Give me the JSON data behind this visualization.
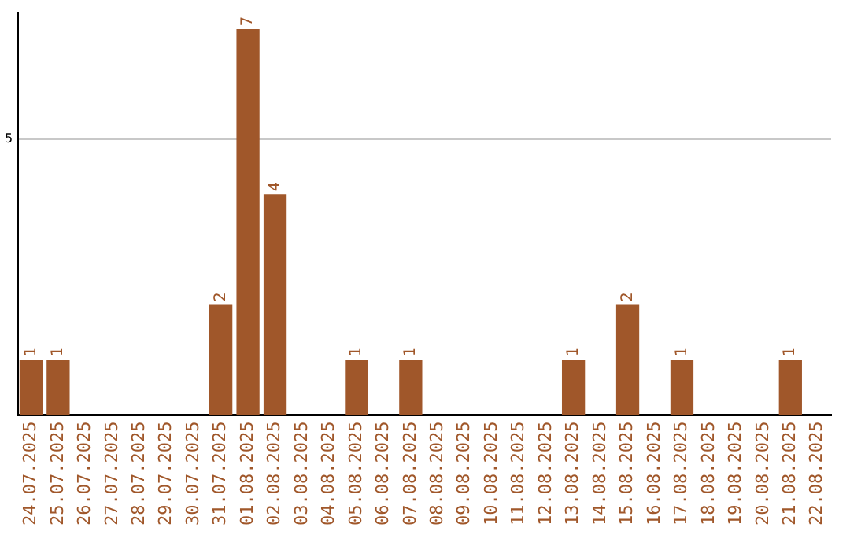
{
  "chart_data": {
    "type": "bar",
    "categories": [
      "24.07.2025",
      "25.07.2025",
      "26.07.2025",
      "27.07.2025",
      "28.07.2025",
      "29.07.2025",
      "30.07.2025",
      "31.07.2025",
      "01.08.2025",
      "02.08.2025",
      "03.08.2025",
      "04.08.2025",
      "05.08.2025",
      "06.08.2025",
      "07.08.2025",
      "08.08.2025",
      "09.08.2025",
      "10.08.2025",
      "11.08.2025",
      "12.08.2025",
      "13.08.2025",
      "14.08.2025",
      "15.08.2025",
      "16.08.2025",
      "17.08.2025",
      "18.08.2025",
      "19.08.2025",
      "20.08.2025",
      "21.08.2025",
      "22.08.2025"
    ],
    "values": [
      1,
      1,
      0,
      0,
      0,
      0,
      0,
      2,
      7,
      4,
      0,
      0,
      1,
      0,
      1,
      0,
      0,
      0,
      0,
      0,
      1,
      0,
      2,
      0,
      1,
      0,
      0,
      0,
      1,
      0
    ],
    "value_labels": [
      "1",
      "1",
      null,
      null,
      null,
      null,
      null,
      "2",
      "7",
      "4",
      null,
      null,
      "1",
      null,
      "1",
      null,
      null,
      null,
      null,
      null,
      "1",
      null,
      "2",
      null,
      "1",
      null,
      null,
      null,
      "1",
      null
    ],
    "color": "#a0572a",
    "ylim": [
      0,
      7.3
    ],
    "yticks": [
      5
    ],
    "grid": "y",
    "legend": false
  }
}
